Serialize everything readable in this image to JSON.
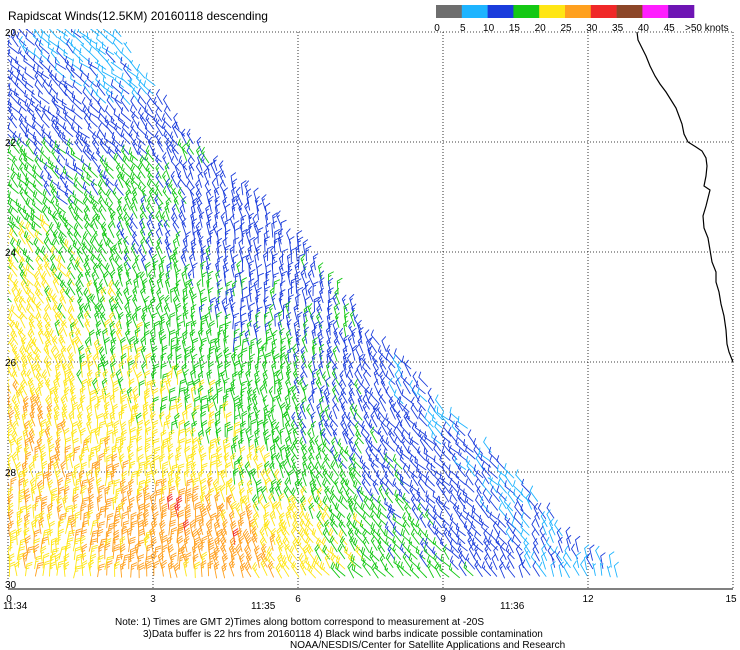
{
  "title": "Rapidscat Winds(12.5KM) 20160118 descending",
  "legend": {
    "labels": [
      "0",
      "5",
      "10",
      "15",
      "20",
      "25",
      "30",
      "35",
      "40",
      "45",
      ">50 knots"
    ],
    "colors": [
      "#6e6e6e",
      "#1eb4ff",
      "#1a3cdc",
      "#14c814",
      "#ffe614",
      "#ffa01e",
      "#f02828",
      "#8c4628",
      "#ff1eff",
      "#6e14b4"
    ]
  },
  "axes": {
    "y_ticks": [
      "20",
      "22",
      "24",
      "26",
      "28",
      "30"
    ],
    "x_ticks": [
      "0",
      "3",
      "6",
      "9",
      "12",
      "15"
    ],
    "time_labels": [
      "11:34",
      "11:35",
      "11:36"
    ],
    "time_label_color": "#9b2aa8"
  },
  "notes": [
    "Note: 1) Times are GMT 2)Times along bottom correspond to measurement at -20S",
    "3)Data buffer is 22 hrs from 20160118 4) Black wind barbs indicate possible contamination",
    "NOAA/NESDIS/Center for Satellite Applications and Research"
  ],
  "coastline_color": "#000000"
}
